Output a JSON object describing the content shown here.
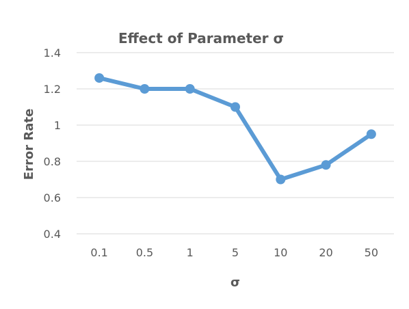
{
  "chart_data": {
    "type": "line",
    "title": "Effect of Parameter σ",
    "xlabel": "σ",
    "ylabel": "Error Rate",
    "categories": [
      "0.1",
      "0.5",
      "1",
      "5",
      "10",
      "20",
      "50"
    ],
    "series": [
      {
        "values": [
          1.26,
          1.2,
          1.2,
          1.1,
          0.7,
          0.78,
          0.95
        ]
      }
    ],
    "ylim": [
      0.4,
      1.4
    ],
    "yticks": [
      0.4,
      0.6,
      0.8,
      1.0,
      1.2,
      1.4
    ],
    "ytick_labels": [
      "0.4",
      "0.6",
      "0.8",
      "1",
      "1.2",
      "1.4"
    ],
    "grid": "horizontal",
    "legend": "none",
    "colors": {
      "series": "#5b9bd5",
      "grid": "#d9d9d9",
      "text": "#595959"
    }
  }
}
